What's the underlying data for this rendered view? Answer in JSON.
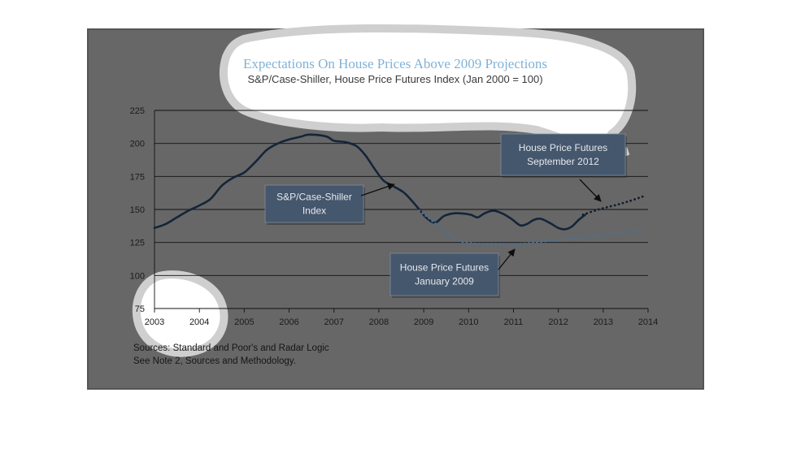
{
  "chart_data": {
    "type": "line",
    "title": "Expectations On House Prices Above 2009 Projections",
    "subtitle": "S&P/Case-Shiller, House Price Futures Index (Jan 2000 = 100)",
    "xlabel": "",
    "ylabel": "",
    "xlim": [
      2003,
      2014
    ],
    "ylim": [
      75,
      225
    ],
    "x_ticks": [
      "2003",
      "2004",
      "2005",
      "2006",
      "2007",
      "2008",
      "2009",
      "2010",
      "2011",
      "2012",
      "2013",
      "2014"
    ],
    "y_ticks": [
      "75",
      "100",
      "125",
      "150",
      "175",
      "200",
      "225"
    ],
    "grid": true,
    "series": [
      {
        "name": "S&P/Case-Shiller Index",
        "style": "solid",
        "color": "#14253a",
        "points": [
          [
            2003.0,
            136
          ],
          [
            2003.25,
            139
          ],
          [
            2003.5,
            144
          ],
          [
            2003.75,
            149
          ],
          [
            2004.0,
            153
          ],
          [
            2004.25,
            158
          ],
          [
            2004.5,
            168
          ],
          [
            2004.75,
            174
          ],
          [
            2005.0,
            178
          ],
          [
            2005.25,
            186
          ],
          [
            2005.5,
            195
          ],
          [
            2005.75,
            200
          ],
          [
            2006.0,
            203
          ],
          [
            2006.25,
            205
          ],
          [
            2006.4,
            206.5
          ],
          [
            2006.6,
            206.5
          ],
          [
            2006.85,
            205
          ],
          [
            2007.0,
            202
          ],
          [
            2007.25,
            201
          ],
          [
            2007.5,
            198
          ],
          [
            2007.7,
            191
          ],
          [
            2007.9,
            181
          ],
          [
            2008.1,
            172
          ],
          [
            2008.3,
            168
          ],
          [
            2008.55,
            163
          ],
          [
            2008.75,
            156
          ],
          [
            2008.9,
            150
          ],
          [
            2009.05,
            144
          ],
          [
            2009.25,
            140
          ],
          [
            2009.45,
            145
          ],
          [
            2009.65,
            147
          ],
          [
            2009.85,
            147
          ],
          [
            2010.05,
            146
          ],
          [
            2010.2,
            144
          ],
          [
            2010.35,
            147
          ],
          [
            2010.55,
            149
          ],
          [
            2010.75,
            147
          ],
          [
            2010.95,
            143
          ],
          [
            2011.15,
            138
          ],
          [
            2011.3,
            139
          ],
          [
            2011.45,
            142
          ],
          [
            2011.6,
            143
          ],
          [
            2011.8,
            140
          ],
          [
            2012.0,
            136
          ],
          [
            2012.15,
            135
          ],
          [
            2012.3,
            137
          ],
          [
            2012.45,
            142
          ],
          [
            2012.6,
            146
          ]
        ]
      },
      {
        "name": "House Price Futures January 2009",
        "style": "dotted",
        "color": "#4f6f93",
        "points": [
          [
            2008.9,
            149
          ],
          [
            2009.2,
            141
          ],
          [
            2009.5,
            132
          ],
          [
            2009.8,
            126
          ],
          [
            2010.2,
            124
          ],
          [
            2010.6,
            124
          ],
          [
            2011.0,
            123.5
          ],
          [
            2011.5,
            125
          ],
          [
            2012.0,
            127
          ],
          [
            2012.5,
            128.5
          ],
          [
            2013.0,
            130.5
          ],
          [
            2013.5,
            132.5
          ],
          [
            2013.9,
            135
          ]
        ]
      },
      {
        "name": "House Price Futures September 2012",
        "style": "dotted",
        "color": "#141d28",
        "points": [
          [
            2012.55,
            146
          ],
          [
            2012.8,
            149
          ],
          [
            2013.0,
            151
          ],
          [
            2013.3,
            153.5
          ],
          [
            2013.6,
            156.5
          ],
          [
            2013.9,
            160
          ]
        ]
      }
    ],
    "annotations": [
      {
        "lines": [
          "S&P/Case-Shiller",
          "Index"
        ]
      },
      {
        "lines": [
          "House Price Futures",
          "January 2009"
        ]
      },
      {
        "lines": [
          "House Price Futures",
          "September 2012"
        ]
      }
    ],
    "sources": [
      "Sources:  Standard and Poor's and Radar Logic",
      "See Note 2, Sources and Methodology."
    ]
  }
}
